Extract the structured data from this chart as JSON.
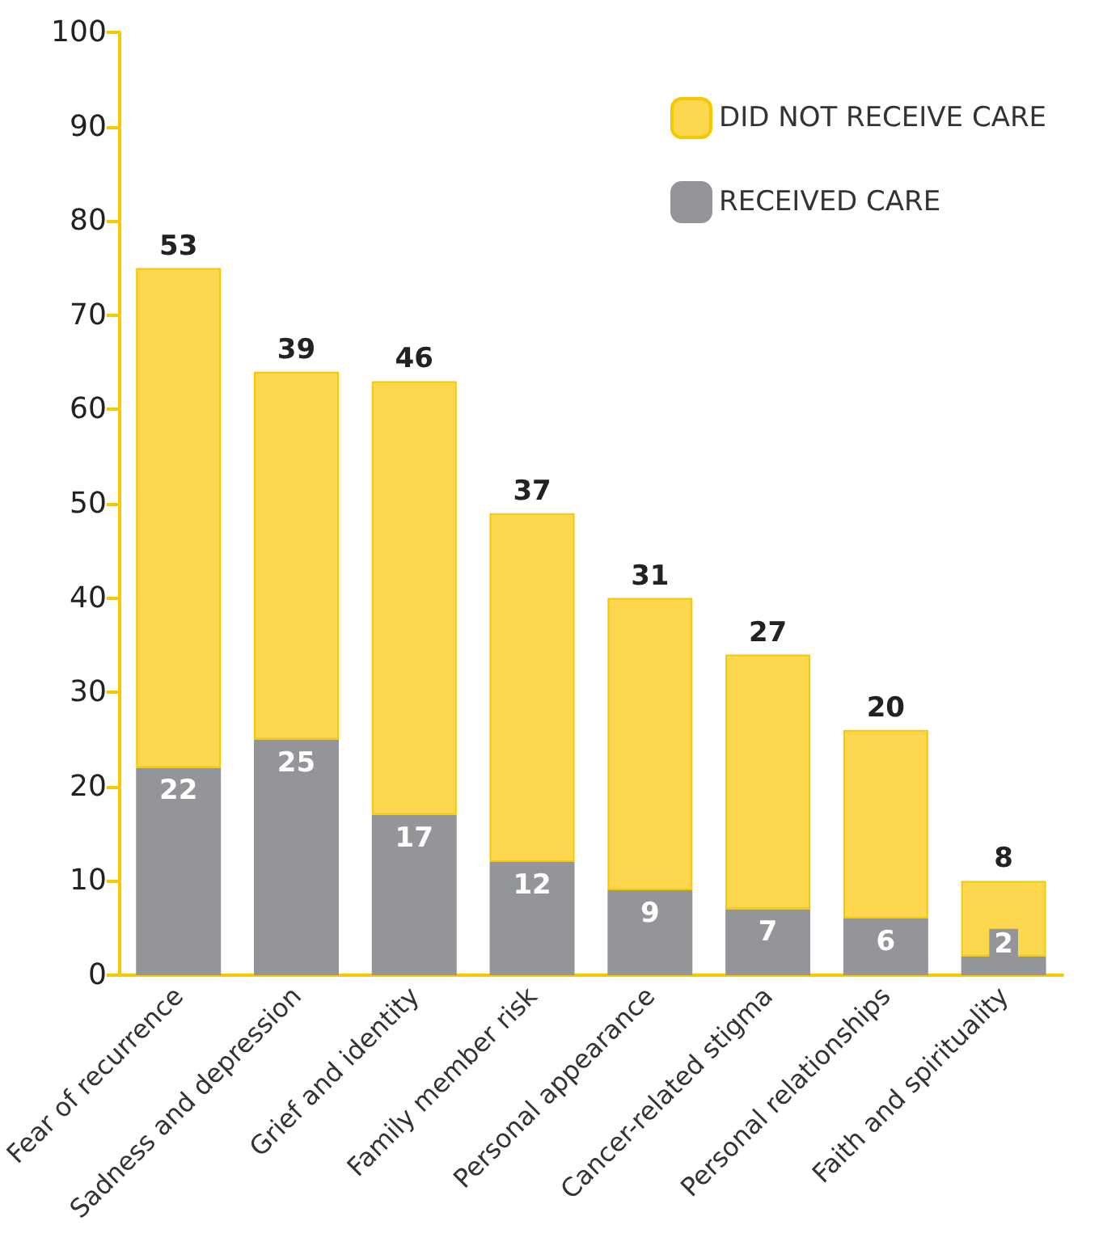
{
  "chart_data": {
    "type": "bar",
    "stacked": true,
    "data_labels": true,
    "legend": "top right",
    "categories": [
      "Fear of recurrence",
      "Sadness and depression",
      "Grief and identity",
      "Family member risk",
      "Personal appearance",
      "Cancer-related stigma",
      "Personal relationships",
      "Faith and spirituality"
    ],
    "series": [
      {
        "name": "RECEIVED CARE",
        "color": "#939598",
        "values": [
          22,
          25,
          17,
          12,
          9,
          7,
          6,
          2
        ]
      },
      {
        "name": "DID NOT RECEIVE CARE",
        "color": "#fdd84f",
        "values": [
          53,
          39,
          46,
          37,
          31,
          27,
          20,
          8
        ]
      }
    ],
    "ylim": [
      0,
      100
    ],
    "yticks": [
      0,
      10,
      20,
      30,
      40,
      50,
      60,
      70,
      80,
      90,
      100
    ]
  }
}
